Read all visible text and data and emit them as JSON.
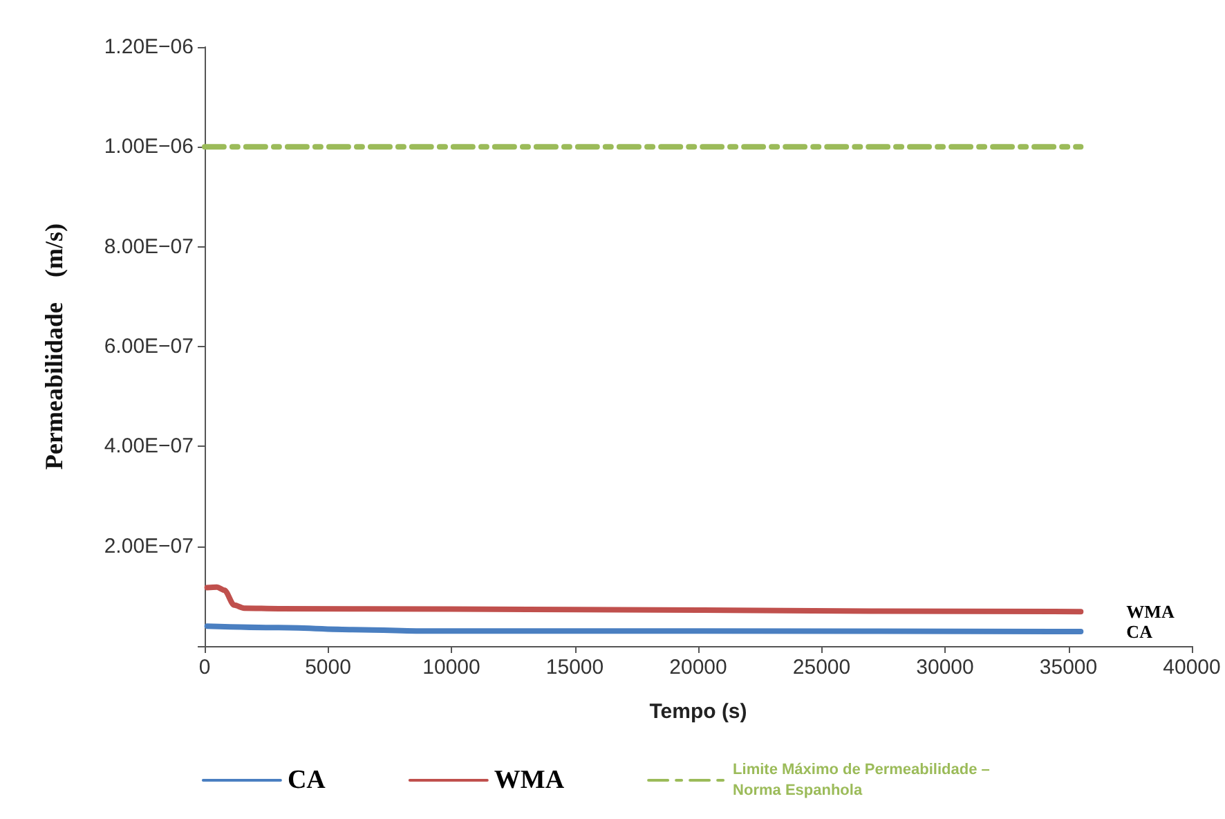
{
  "chart_data": {
    "type": "line",
    "xlabel": "Tempo (s)",
    "ylabel": "Permeabilidade    (m/s)",
    "xlim": [
      0,
      40000
    ],
    "xticks": [
      0,
      5000,
      10000,
      15000,
      20000,
      25000,
      30000,
      35000,
      40000
    ],
    "ylim": [
      0,
      1.2e-06
    ],
    "yticks": [
      {
        "value": 0,
        "label": null
      },
      {
        "value": 2e-07,
        "label": "2.00E−07"
      },
      {
        "value": 4e-07,
        "label": "4.00E−07"
      },
      {
        "value": 6e-07,
        "label": "6.00E−07"
      },
      {
        "value": 8e-07,
        "label": "8.00E−07"
      },
      {
        "value": 1e-06,
        "label": "1.00E−06"
      },
      {
        "value": 1.2e-06,
        "label": "1.20E−06"
      }
    ],
    "grid": false,
    "legend": "bottom",
    "marker": "none",
    "series": [
      {
        "name": "CA",
        "color": "#4a7fc1",
        "line_style": "solid",
        "x": [
          100,
          3000,
          6000,
          9000,
          20000,
          35500
        ],
        "values": [
          4e-08,
          3.7e-08,
          3.3e-08,
          3e-08,
          3e-08,
          2.9e-08
        ]
      },
      {
        "name": "WMA",
        "color": "#c0504d",
        "line_style": "solid",
        "x": [
          100,
          500,
          800,
          1200,
          1600,
          3000,
          10000,
          20000,
          27000,
          35500
        ],
        "values": [
          1.17e-07,
          1.18e-07,
          1.12e-07,
          8.2e-08,
          7.6e-08,
          7.5e-08,
          7.4e-08,
          7.2e-08,
          7e-08,
          6.9e-08
        ]
      },
      {
        "name": "Limite Máximo de Permeabilidade – Norma Espanhola",
        "color": "#9bbb59",
        "line_style": "dashed",
        "x": [
          0,
          35500
        ],
        "values": [
          1e-06,
          1e-06
        ]
      }
    ]
  }
}
